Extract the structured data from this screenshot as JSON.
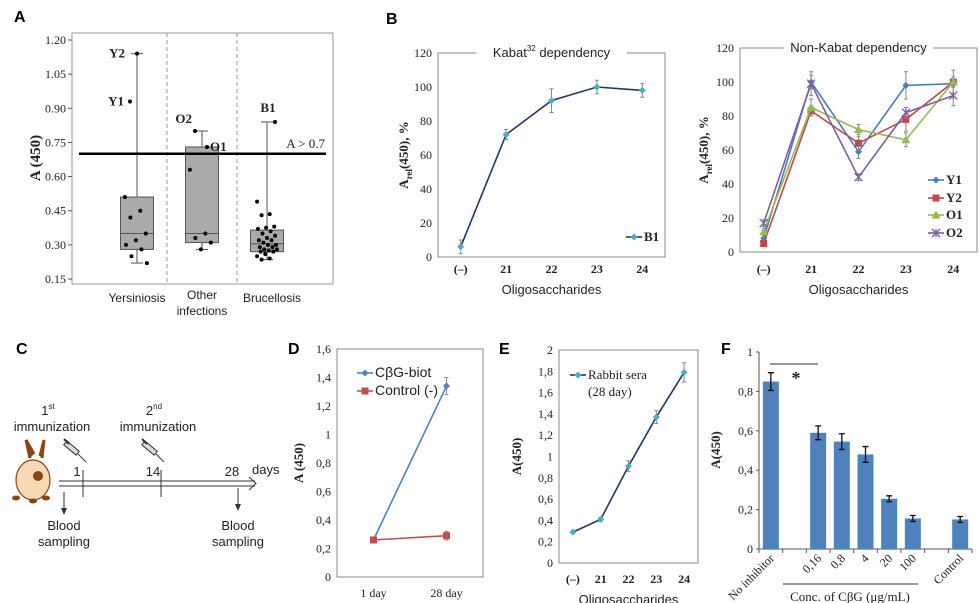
{
  "panel_letters": {
    "A": "A",
    "B": "B",
    "C": "C",
    "D": "D",
    "E": "E",
    "F": "F"
  },
  "diagram_c": {
    "immunization_1": {
      "num": "1",
      "sup": "st",
      "label": "immunization"
    },
    "immunization_2": {
      "num": "2",
      "sup": "nd",
      "label": "immunization"
    },
    "timeline_ticks": [
      "1",
      "14",
      "28"
    ],
    "timeline_unit": "days",
    "blood_sampling_1": [
      "Blood",
      "sampling"
    ],
    "blood_sampling_2": [
      "Blood",
      "sampling"
    ],
    "icons": [
      "rabbit-icon",
      "syringe-icon",
      "syringe-icon"
    ]
  },
  "chart_data": [
    {
      "panel": "A",
      "type": "box",
      "ylabel": "A (450)",
      "yticks": [
        "0.15",
        "0.30",
        "0.45",
        "0.60",
        "0.75",
        "0.90",
        "1.05",
        "1.20"
      ],
      "ylim": [
        0.15,
        1.2
      ],
      "categories": [
        [
          "Yersiniosis"
        ],
        [
          "Other",
          "infections"
        ],
        [
          "Brucellosis"
        ]
      ],
      "boxes": [
        {
          "whisker_low": 0.22,
          "q1": 0.28,
          "median": 0.35,
          "q3": 0.51,
          "whisker_high": 1.14
        },
        {
          "whisker_low": 0.28,
          "q1": 0.31,
          "median": 0.35,
          "q3": 0.73,
          "whisker_high": 0.8
        },
        {
          "whisker_low": 0.235,
          "q1": 0.27,
          "median": 0.305,
          "q3": 0.365,
          "whisker_high": 0.84
        }
      ],
      "points": [
        [
          0.51,
          0.45,
          0.42,
          0.35,
          0.32,
          0.3,
          0.28,
          0.25,
          0.22
        ],
        [
          0.63,
          0.35,
          0.33,
          0.31,
          0.28
        ],
        [
          0.49,
          0.435,
          0.43,
          0.38,
          0.375,
          0.37,
          0.36,
          0.35,
          0.34,
          0.33,
          0.32,
          0.32,
          0.31,
          0.3,
          0.3,
          0.29,
          0.29,
          0.28,
          0.28,
          0.275,
          0.27,
          0.27,
          0.26,
          0.25,
          0.24,
          0.235
        ]
      ],
      "labeled_points": [
        {
          "group": 0,
          "value": 1.14,
          "label": "Y2"
        },
        {
          "group": 0,
          "value": 0.93,
          "label": "Y1"
        },
        {
          "group": 1,
          "value": 0.8,
          "label": "O2"
        },
        {
          "group": 1,
          "value": 0.73,
          "label": "O1"
        },
        {
          "group": 2,
          "value": 0.84,
          "label": "B1"
        }
      ],
      "threshold": {
        "value": 0.7,
        "label": "A > 0.7"
      },
      "grid": false
    },
    {
      "panel": "B",
      "type": "line",
      "title": {
        "main": "Kabat",
        "sup": "32",
        "rest": " dependency"
      },
      "ylabel": {
        "main": "A",
        "sub": "rel",
        "rest": "(450), %"
      },
      "xlabel": "Oligosaccharides",
      "categories": [
        "(–)",
        "21",
        "22",
        "23",
        "24"
      ],
      "yticks": [
        "0",
        "20",
        "40",
        "60",
        "80",
        "100",
        "120"
      ],
      "ylim": [
        0,
        120
      ],
      "series": [
        {
          "name": "B1",
          "values": [
            6,
            72,
            92,
            100,
            98
          ],
          "err": [
            4,
            3,
            7,
            4,
            4
          ],
          "color": "#1f3864",
          "marker_color": "#4bacc6",
          "marker": "diamond"
        }
      ],
      "legend": "bottom-right",
      "grid": false
    },
    {
      "panel": "B",
      "type": "line",
      "title": {
        "main": "Non-Kabat dependency",
        "sup": "",
        "rest": ""
      },
      "ylabel": {
        "main": "A",
        "sub": "rel",
        "rest": "(450), %"
      },
      "xlabel": "Oligosaccharides",
      "categories": [
        "(–)",
        "21",
        "22",
        "23",
        "24"
      ],
      "yticks": [
        "0",
        "20",
        "40",
        "60",
        "80",
        "100",
        "120"
      ],
      "ylim": [
        0,
        120
      ],
      "series": [
        {
          "name": "Y1",
          "values": [
            8,
            100,
            59,
            98,
            99
          ],
          "err": [
            2,
            4,
            4,
            8,
            2
          ],
          "color": "#4a7ebb",
          "marker_color": "#4a7ebb",
          "marker": "diamond"
        },
        {
          "name": "Y2",
          "values": [
            5,
            83,
            64,
            78,
            100
          ],
          "err": [
            1,
            3,
            4,
            7,
            3
          ],
          "color": "#be4b48",
          "marker_color": "#be4b48",
          "marker": "square"
        },
        {
          "name": "O1",
          "values": [
            12,
            85,
            72,
            66,
            100
          ],
          "err": [
            2,
            5,
            3,
            4,
            7
          ],
          "color": "#98b954",
          "marker_color": "#98b954",
          "marker": "triangle"
        },
        {
          "name": "O2",
          "values": [
            17,
            99,
            44,
            82,
            92
          ],
          "err": [
            2,
            7,
            2,
            3,
            6
          ],
          "color": "#7d60a0",
          "marker_color": "#7d60a0",
          "marker": "x"
        }
      ],
      "legend": "bottom-right",
      "grid": false
    },
    {
      "panel": "D",
      "type": "line",
      "ylabel": "A (450)",
      "categories": [
        "1 day",
        "28 day"
      ],
      "yticks": [
        "0",
        "0,2",
        "0,4",
        "0,6",
        "0,8",
        "1",
        "1,2",
        "1,4",
        "1,6"
      ],
      "ylim": [
        0,
        1.6
      ],
      "series": [
        {
          "name": "CβG-biot",
          "values": [
            0.26,
            1.34
          ],
          "err": [
            0.02,
            0.06
          ],
          "color": "#4f81bd",
          "marker_color": "#4f81bd",
          "marker": "diamond"
        },
        {
          "name": "Control (-)",
          "values": [
            0.26,
            0.29
          ],
          "err": [
            0.02,
            0.03
          ],
          "color": "#c0504d",
          "marker_color": "#c0504d",
          "marker": "square"
        }
      ],
      "legend": "top-left",
      "grid": false
    },
    {
      "panel": "E",
      "type": "line",
      "ylabel": "A(450)",
      "xlabel": "Oligosaccharides",
      "categories": [
        "(–)",
        "21",
        "22",
        "23",
        "24"
      ],
      "yticks": [
        "0",
        "0,2",
        "0,4",
        "0,6",
        "0,8",
        "1",
        "1,2",
        "1,4",
        "1,6",
        "1,8",
        "2"
      ],
      "ylim": [
        0,
        2
      ],
      "series": [
        {
          "name": [
            "Rabbit sera",
            "(28 day)"
          ],
          "values": [
            0.29,
            0.41,
            0.91,
            1.37,
            1.79
          ],
          "err": [
            0.01,
            0.02,
            0.05,
            0.06,
            0.09
          ],
          "color": "#1f3864",
          "marker_color": "#4bacc6",
          "marker": "diamond"
        }
      ],
      "legend": "top-left",
      "grid": false
    },
    {
      "panel": "F",
      "type": "bar",
      "ylabel": "A(450)",
      "categories": [
        "No inhibitor",
        "",
        "0,16",
        "0,8",
        "4",
        "20",
        "100",
        "",
        "Control"
      ],
      "values": [
        0.85,
        null,
        0.59,
        0.545,
        0.48,
        0.255,
        0.155,
        null,
        0.15
      ],
      "err": [
        0.045,
        null,
        0.035,
        0.04,
        0.04,
        0.015,
        0.015,
        null,
        0.015
      ],
      "yticks": [
        "0",
        "0,2",
        "0,4",
        "0,6",
        "0,8",
        "1"
      ],
      "ylim": [
        0,
        1
      ],
      "group_label": "Conc. of CβG (μg/mL)",
      "significance": "*",
      "color": "#4f81bd",
      "grid": false
    }
  ]
}
